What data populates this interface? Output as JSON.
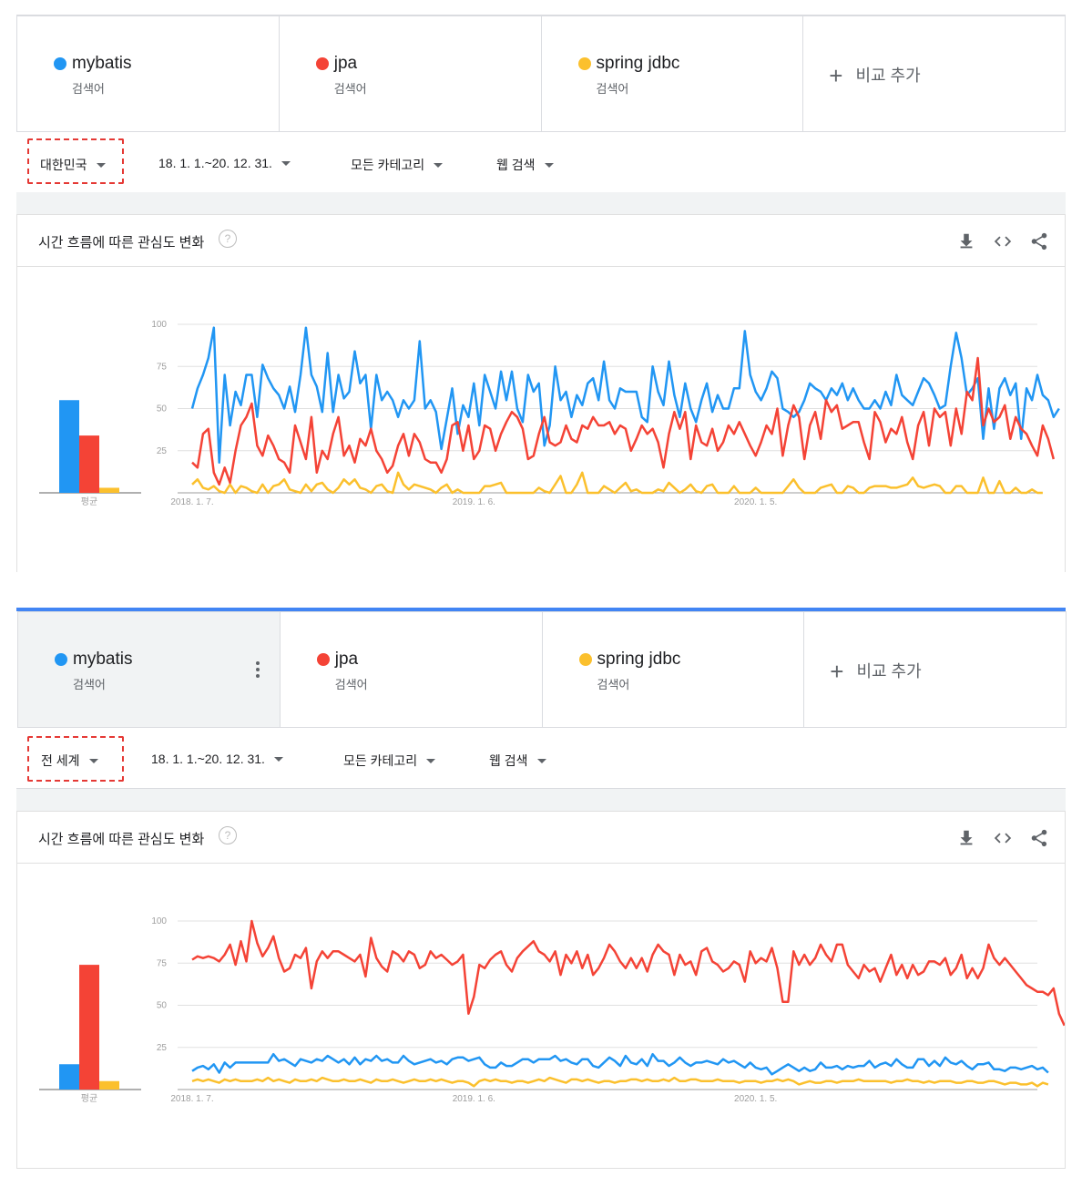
{
  "colors": {
    "mybatis": "#2196f3",
    "jpa": "#f44336",
    "spring_jdbc": "#fbc02d",
    "accent": "#4285f4",
    "highlight": "#e53935"
  },
  "panels": [
    {
      "terms": [
        {
          "name": "mybatis",
          "sub": "검색어",
          "color": "#2196f3"
        },
        {
          "name": "jpa",
          "sub": "검색어",
          "color": "#f44336"
        },
        {
          "name": "spring jdbc",
          "sub": "검색어",
          "color": "#fbc02d"
        }
      ],
      "add_label": "비교 추가",
      "filters": {
        "region": "대한민국",
        "period": "18. 1. 1.~20. 12. 31.",
        "category": "모든 카테고리",
        "search_type": "웹 검색"
      },
      "card_title": "시간 흐름에 따른 관심도 변화",
      "avg_label": "평균",
      "icons": [
        "download-icon",
        "embed-code-icon",
        "share-icon"
      ]
    },
    {
      "terms": [
        {
          "name": "mybatis",
          "sub": "검색어",
          "color": "#2196f3"
        },
        {
          "name": "jpa",
          "sub": "검색어",
          "color": "#f44336"
        },
        {
          "name": "spring jdbc",
          "sub": "검색어",
          "color": "#fbc02d"
        }
      ],
      "add_label": "비교 추가",
      "filters": {
        "region": "전 세계",
        "period": "18. 1. 1.~20. 12. 31.",
        "category": "모든 카테고리",
        "search_type": "웹 검색"
      },
      "card_title": "시간 흐름에 따른 관심도 변화",
      "avg_label": "평균",
      "icons": [
        "download-icon",
        "embed-code-icon",
        "share-icon"
      ]
    }
  ],
  "chart_data": [
    {
      "type": "line",
      "region": "대한민국",
      "y_ticks": [
        25,
        50,
        75,
        100
      ],
      "ylim": [
        0,
        100
      ],
      "x_tick_labels": [
        "2018. 1. 7.",
        "2019. 1. 6.",
        "2020. 1. 5."
      ],
      "x_tick_weeks": [
        0,
        52,
        104
      ],
      "weeks": 157,
      "series": [
        {
          "name": "mybatis",
          "color": "#2196f3",
          "values": [
            50,
            62,
            70,
            80,
            98,
            18,
            70,
            40,
            60,
            52,
            70,
            70,
            45,
            76,
            68,
            62,
            58,
            50,
            63,
            48,
            70,
            98,
            70,
            63,
            48,
            83,
            48,
            70,
            56,
            60,
            84,
            65,
            70,
            38,
            70,
            55,
            60,
            55,
            45,
            55,
            50,
            55,
            90,
            50,
            55,
            48,
            26,
            44,
            62,
            35,
            52,
            45,
            65,
            40,
            70,
            60,
            50,
            72,
            55,
            72,
            50,
            42,
            70,
            60,
            65,
            28,
            40,
            75,
            55,
            60,
            45,
            58,
            52,
            65,
            68,
            55,
            78,
            55,
            50,
            62,
            60,
            60,
            60,
            45,
            42,
            75,
            60,
            52,
            78,
            58,
            45,
            65,
            50,
            42,
            55,
            65,
            48,
            58,
            50,
            50,
            62,
            62,
            96,
            70,
            60,
            55,
            62,
            72,
            68,
            50,
            48,
            45,
            48,
            55,
            65,
            62,
            60,
            55,
            62,
            58,
            65,
            55,
            62,
            55,
            50,
            50,
            55,
            50,
            60,
            52,
            70,
            58,
            55,
            52,
            60,
            68,
            65,
            58,
            50,
            52,
            75,
            95,
            80,
            58,
            62,
            68,
            32,
            62,
            38,
            62,
            68,
            58,
            65,
            32,
            62,
            55,
            70,
            58,
            55,
            45,
            50
          ]
        },
        {
          "name": "jpa",
          "color": "#f44336",
          "values": [
            18,
            15,
            35,
            38,
            12,
            5,
            15,
            6,
            25,
            40,
            45,
            53,
            28,
            22,
            34,
            28,
            20,
            18,
            12,
            40,
            30,
            20,
            45,
            12,
            25,
            20,
            35,
            45,
            22,
            28,
            18,
            32,
            28,
            38,
            25,
            20,
            12,
            16,
            28,
            35,
            22,
            35,
            30,
            20,
            18,
            18,
            12,
            20,
            40,
            42,
            25,
            40,
            20,
            25,
            40,
            38,
            25,
            35,
            42,
            48,
            45,
            38,
            20,
            22,
            35,
            45,
            30,
            28,
            30,
            40,
            32,
            30,
            40,
            38,
            45,
            40,
            40,
            42,
            35,
            40,
            38,
            25,
            32,
            40,
            35,
            38,
            30,
            15,
            35,
            48,
            38,
            48,
            20,
            40,
            30,
            28,
            38,
            25,
            30,
            40,
            35,
            42,
            35,
            28,
            22,
            30,
            40,
            35,
            50,
            22,
            40,
            52,
            45,
            20,
            40,
            48,
            32,
            55,
            48,
            52,
            38,
            40,
            42,
            42,
            30,
            20,
            48,
            42,
            30,
            38,
            35,
            45,
            30,
            20,
            40,
            48,
            28,
            50,
            45,
            48,
            28,
            50,
            35,
            60,
            55,
            80,
            40,
            50,
            42,
            45,
            52,
            32,
            45,
            38,
            35,
            28,
            22,
            40,
            32,
            20
          ]
        },
        {
          "name": "spring jdbc",
          "color": "#fbc02d",
          "values": [
            5,
            8,
            3,
            2,
            4,
            1,
            0,
            5,
            0,
            4,
            3,
            1,
            0,
            5,
            0,
            4,
            5,
            8,
            2,
            1,
            0,
            5,
            1,
            5,
            6,
            2,
            0,
            3,
            8,
            5,
            8,
            3,
            2,
            0,
            4,
            5,
            1,
            0,
            12,
            5,
            2,
            5,
            4,
            3,
            2,
            0,
            3,
            5,
            0,
            2,
            0,
            0,
            0,
            0,
            4,
            4,
            5,
            6,
            0,
            0,
            0,
            0,
            0,
            0,
            3,
            1,
            0,
            5,
            10,
            0,
            0,
            5,
            12,
            0,
            0,
            0,
            4,
            2,
            0,
            3,
            6,
            1,
            2,
            0,
            0,
            0,
            2,
            1,
            6,
            3,
            0,
            2,
            5,
            1,
            0,
            4,
            5,
            0,
            0,
            0,
            4,
            0,
            0,
            0,
            3,
            0,
            0,
            0,
            0,
            0,
            4,
            8,
            3,
            0,
            0,
            0,
            3,
            4,
            5,
            0,
            0,
            4,
            3,
            0,
            0,
            3,
            4,
            4,
            4,
            3,
            3,
            4,
            5,
            9,
            4,
            3,
            4,
            5,
            4,
            0,
            0,
            4,
            4,
            0,
            0,
            0,
            9,
            0,
            0,
            7,
            0,
            0,
            3,
            0,
            0,
            2,
            0,
            0
          ]
        }
      ],
      "averages": {
        "mybatis": 55,
        "jpa": 34,
        "spring jdbc": 3
      }
    },
    {
      "type": "line",
      "region": "전 세계",
      "y_ticks": [
        25,
        50,
        75,
        100
      ],
      "ylim": [
        0,
        100
      ],
      "x_tick_labels": [
        "2018. 1. 7.",
        "2019. 1. 6.",
        "2020. 1. 5."
      ],
      "x_tick_weeks": [
        0,
        52,
        104
      ],
      "weeks": 157,
      "series": [
        {
          "name": "mybatis",
          "color": "#2196f3",
          "values": [
            11,
            13,
            14,
            12,
            15,
            10,
            16,
            13,
            16,
            16,
            16,
            16,
            16,
            16,
            16,
            21,
            17,
            18,
            16,
            14,
            18,
            17,
            16,
            18,
            17,
            20,
            18,
            16,
            18,
            15,
            19,
            15,
            18,
            17,
            20,
            17,
            18,
            16,
            16,
            20,
            17,
            15,
            16,
            17,
            18,
            16,
            17,
            15,
            18,
            19,
            19,
            17,
            18,
            19,
            15,
            13,
            13,
            16,
            14,
            14,
            16,
            18,
            18,
            16,
            18,
            18,
            18,
            20,
            17,
            18,
            16,
            15,
            18,
            18,
            14,
            13,
            16,
            19,
            17,
            14,
            20,
            16,
            15,
            18,
            14,
            21,
            17,
            17,
            14,
            16,
            19,
            16,
            14,
            16,
            16,
            17,
            16,
            15,
            18,
            16,
            17,
            15,
            13,
            16,
            13,
            12,
            13,
            9,
            11,
            13,
            15,
            13,
            11,
            13,
            11,
            12,
            16,
            13,
            13,
            14,
            12,
            14,
            13,
            14,
            14,
            17,
            13,
            15,
            16,
            14,
            18,
            15,
            13,
            13,
            18,
            18,
            14,
            17,
            14,
            19,
            16,
            15,
            17,
            14,
            12,
            15,
            15,
            16,
            12,
            12,
            11,
            13,
            13,
            12,
            13,
            14,
            12,
            13,
            10
          ]
        },
        {
          "name": "jpa",
          "color": "#f44336",
          "values": [
            77,
            79,
            78,
            79,
            78,
            76,
            80,
            86,
            74,
            88,
            76,
            100,
            87,
            79,
            84,
            91,
            78,
            70,
            72,
            80,
            78,
            84,
            60,
            76,
            82,
            78,
            82,
            82,
            80,
            78,
            76,
            80,
            67,
            90,
            78,
            73,
            70,
            82,
            80,
            76,
            82,
            80,
            72,
            74,
            82,
            78,
            80,
            77,
            74,
            76,
            80,
            45,
            55,
            74,
            72,
            77,
            80,
            82,
            74,
            70,
            78,
            82,
            85,
            88,
            82,
            80,
            76,
            82,
            68,
            80,
            75,
            82,
            72,
            80,
            68,
            72,
            78,
            86,
            82,
            76,
            72,
            78,
            72,
            78,
            70,
            80,
            86,
            82,
            80,
            68,
            80,
            74,
            76,
            68,
            82,
            84,
            76,
            74,
            70,
            72,
            76,
            74,
            64,
            82,
            75,
            78,
            76,
            84,
            72,
            52,
            52,
            82,
            74,
            80,
            74,
            78,
            86,
            80,
            76,
            86,
            86,
            74,
            70,
            66,
            74,
            70,
            72,
            64,
            72,
            80,
            68,
            74,
            66,
            74,
            68,
            70,
            76,
            76,
            74,
            78,
            68,
            72,
            80,
            66,
            72,
            66,
            72,
            86,
            78,
            74,
            78,
            74,
            70,
            66,
            62,
            60,
            58,
            58,
            56,
            60,
            45,
            38
          ]
        },
        {
          "name": "spring jdbc",
          "color": "#fbc02d",
          "values": [
            5,
            6,
            5,
            6,
            5,
            4,
            6,
            5,
            6,
            5,
            5,
            5,
            6,
            5,
            7,
            5,
            6,
            5,
            4,
            6,
            5,
            5,
            6,
            5,
            7,
            6,
            5,
            5,
            6,
            5,
            5,
            6,
            5,
            4,
            6,
            5,
            5,
            6,
            5,
            4,
            5,
            6,
            5,
            5,
            6,
            5,
            6,
            5,
            4,
            5,
            5,
            4,
            2,
            5,
            6,
            5,
            6,
            5,
            5,
            4,
            5,
            5,
            4,
            5,
            6,
            5,
            7,
            6,
            5,
            4,
            6,
            6,
            5,
            6,
            5,
            4,
            5,
            5,
            4,
            5,
            5,
            6,
            6,
            5,
            6,
            5,
            5,
            6,
            5,
            7,
            5,
            5,
            6,
            6,
            5,
            5,
            5,
            6,
            5,
            5,
            5,
            4,
            5,
            5,
            5,
            4,
            5,
            5,
            6,
            5,
            6,
            5,
            3,
            4,
            5,
            4,
            4,
            5,
            5,
            4,
            5,
            5,
            5,
            6,
            5,
            5,
            5,
            5,
            5,
            4,
            5,
            5,
            6,
            5,
            5,
            4,
            5,
            4,
            5,
            5,
            5,
            4,
            4,
            5,
            5,
            4,
            4,
            5,
            5,
            4,
            3,
            4,
            4,
            3,
            3,
            4,
            2,
            4,
            3
          ]
        }
      ],
      "averages": {
        "mybatis": 15,
        "jpa": 74,
        "spring jdbc": 5
      }
    }
  ]
}
